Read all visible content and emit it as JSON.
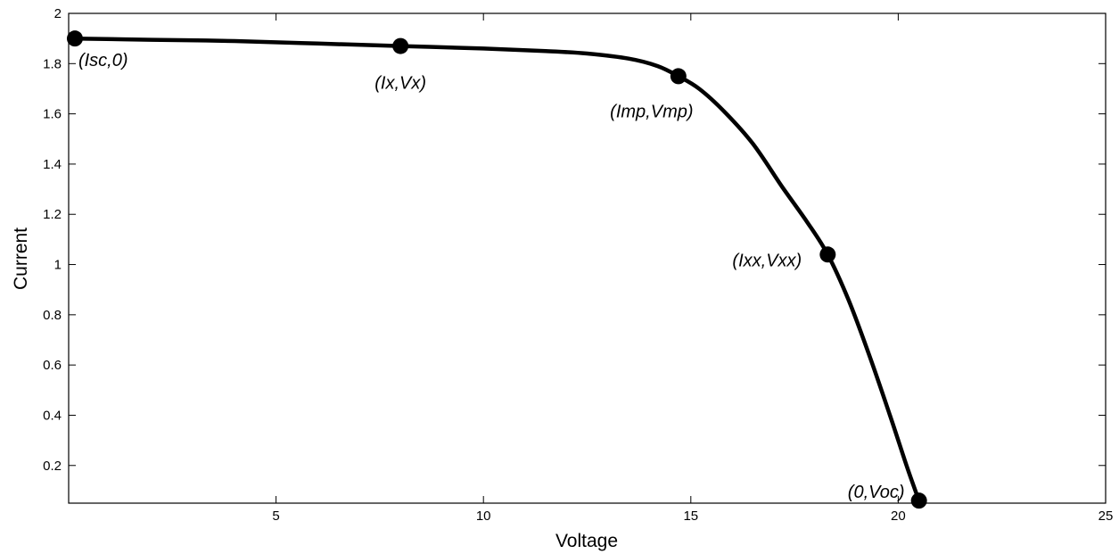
{
  "chart_data": {
    "type": "line",
    "title": "",
    "xlabel": "Voltage",
    "ylabel": "Current",
    "xlim": [
      0,
      25
    ],
    "ylim": [
      0.05,
      2
    ],
    "xticks": [
      5,
      10,
      15,
      20,
      25
    ],
    "yticks": [
      0.2,
      0.4,
      0.6,
      0.8,
      1,
      1.2,
      1.4,
      1.6,
      1.8,
      2
    ],
    "grid": false,
    "colors": {
      "line": "#000000",
      "marker": "#000000",
      "axes": "#000000"
    },
    "series": [
      {
        "x": [
          0.15,
          2,
          4,
          6,
          8,
          10,
          11.5,
          12.5,
          13.5,
          14.2,
          14.7,
          15.2,
          15.8,
          16.5,
          17.2,
          17.8,
          18.3,
          18.8,
          19.3,
          19.8,
          20.2,
          20.5
        ],
        "y": [
          1.9,
          1.895,
          1.89,
          1.88,
          1.87,
          1.86,
          1.85,
          1.84,
          1.82,
          1.79,
          1.75,
          1.7,
          1.61,
          1.48,
          1.31,
          1.17,
          1.04,
          0.86,
          0.64,
          0.4,
          0.2,
          0.06
        ]
      }
    ],
    "markers": [
      {
        "x": 0.15,
        "y": 1.9,
        "label": "(Isc,0)"
      },
      {
        "x": 8.0,
        "y": 1.87,
        "label": "(Ix,Vx)"
      },
      {
        "x": 14.7,
        "y": 1.75,
        "label": "(Imp,Vmp)"
      },
      {
        "x": 18.3,
        "y": 1.04,
        "label": "(Ixx,Vxx)"
      },
      {
        "x": 20.5,
        "y": 0.06,
        "label": "(0,Voc)"
      }
    ]
  }
}
